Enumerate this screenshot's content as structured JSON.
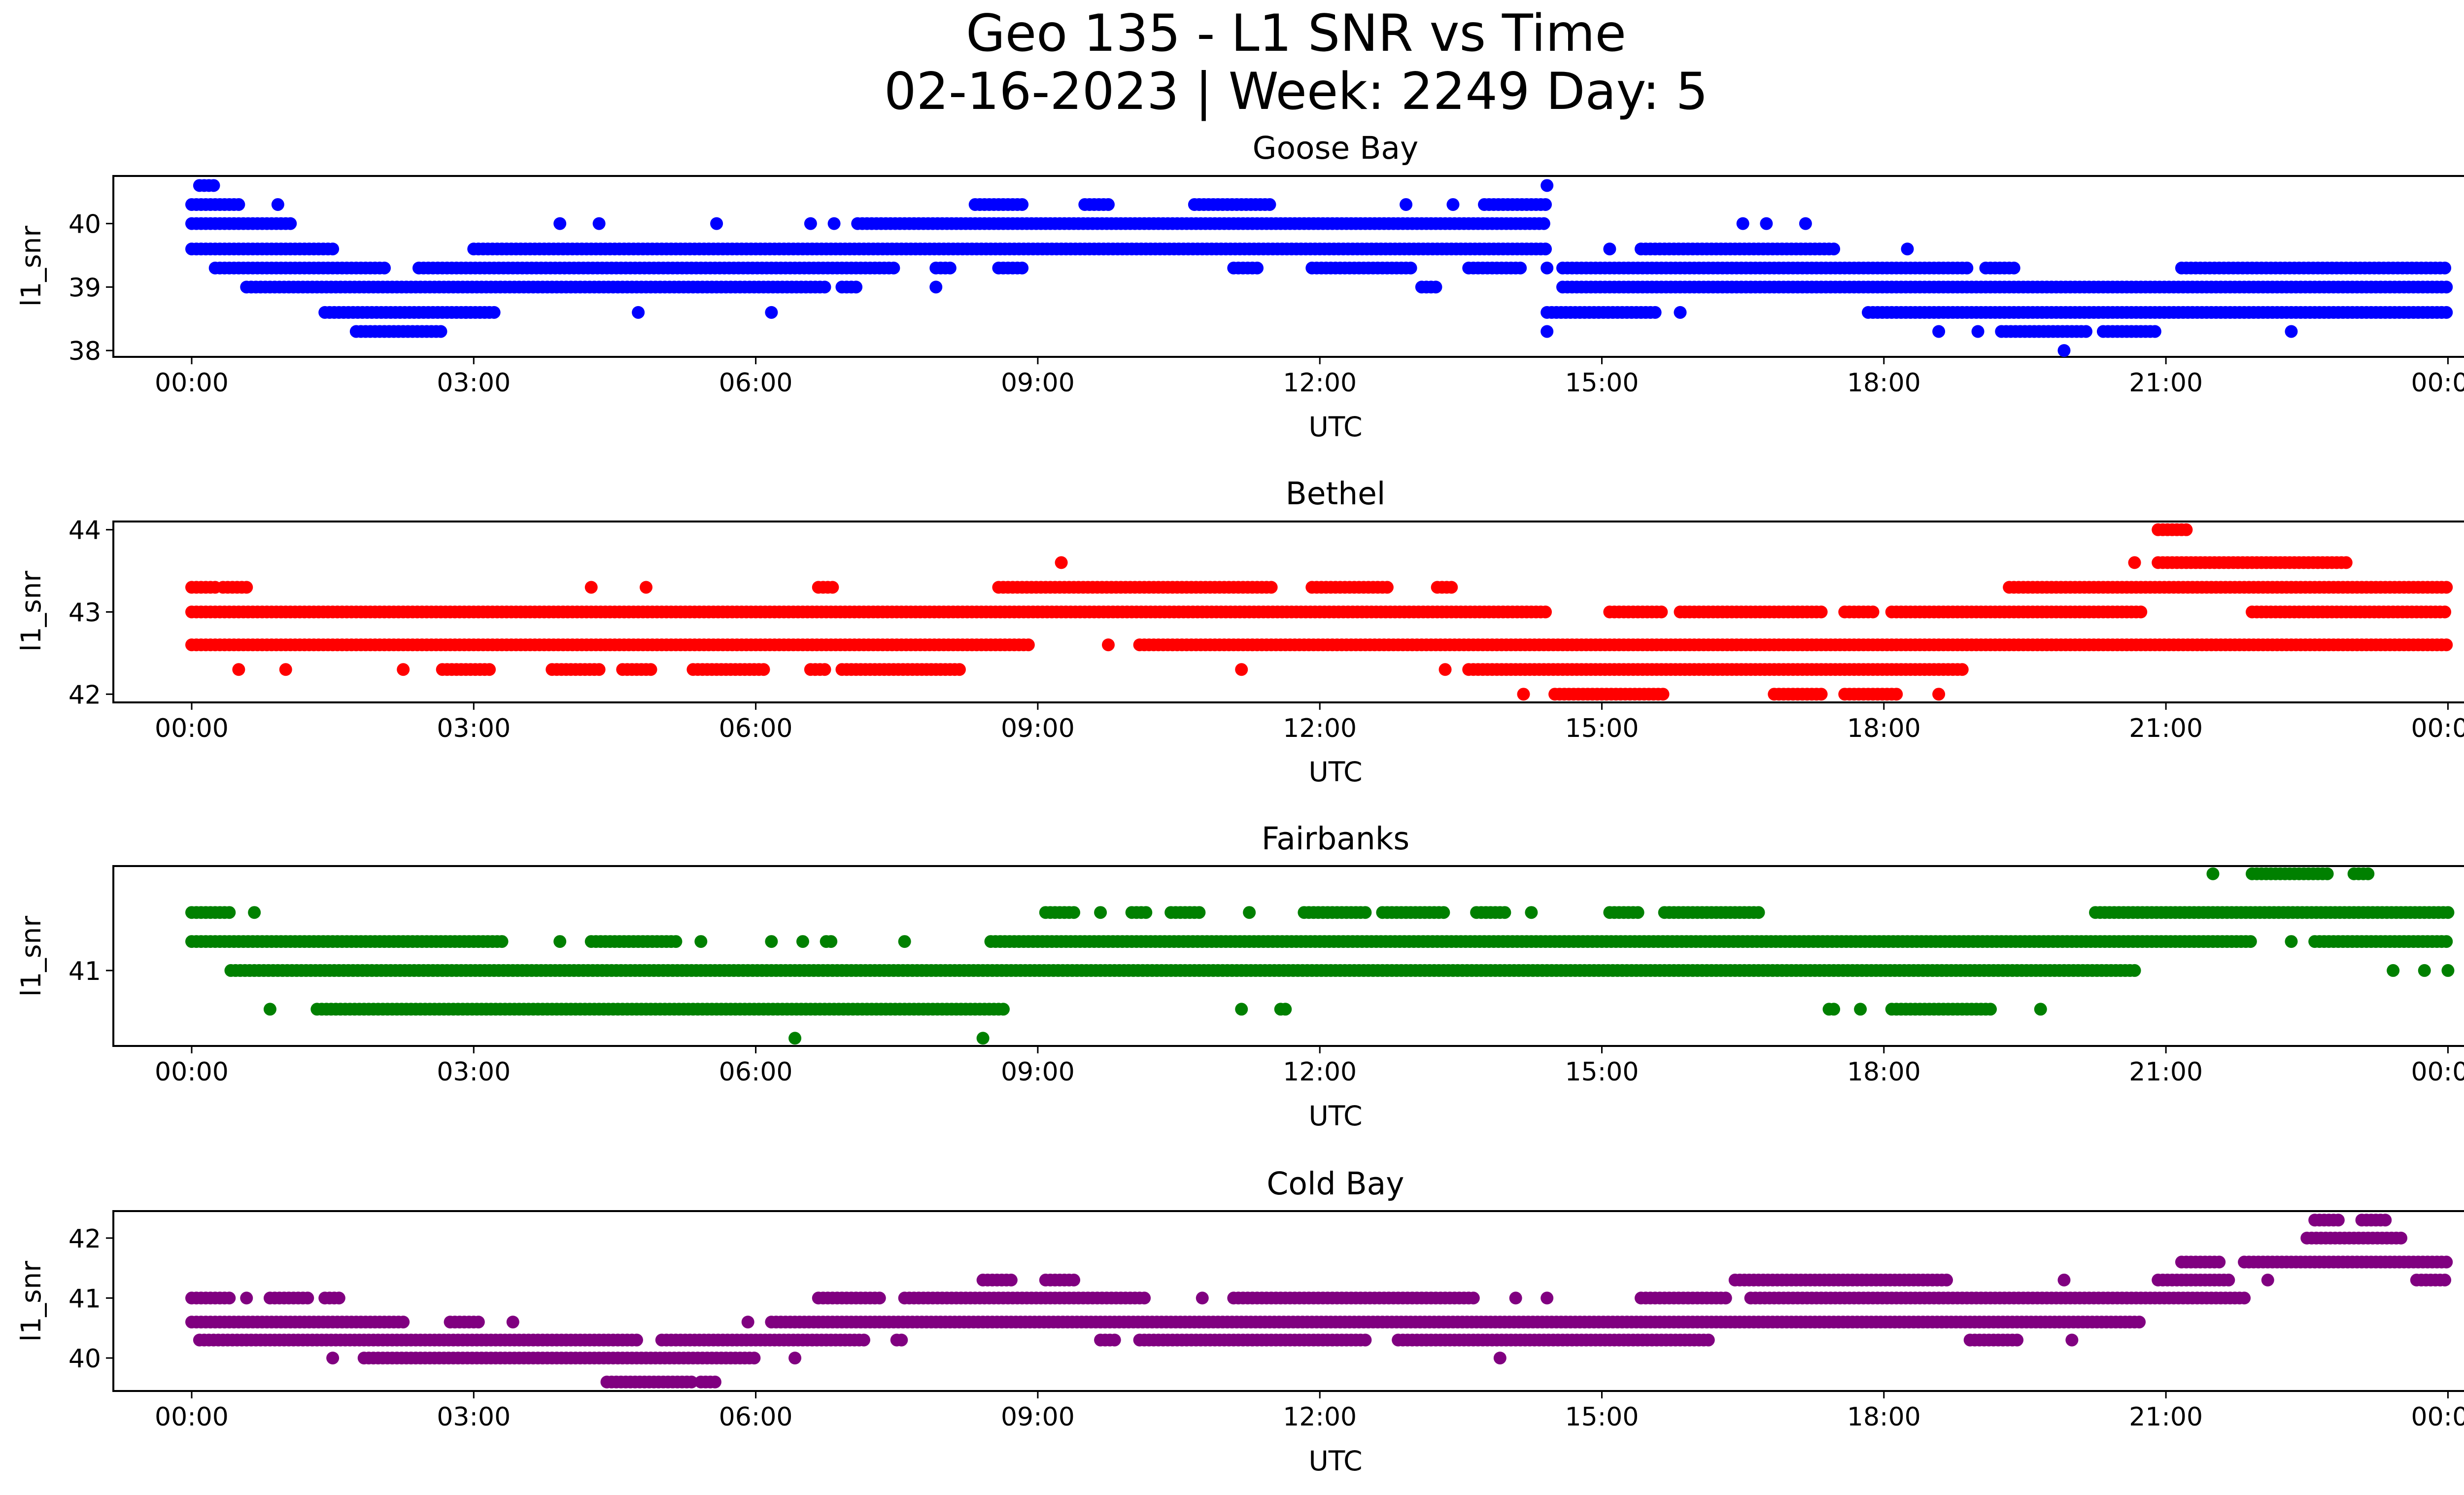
{
  "title_line1": "Geo 135 - L1 SNR vs Time",
  "title_line2": "02-16-2023 | Week: 2249 Day: 5",
  "xtick_labels": [
    "00:00",
    "03:00",
    "06:00",
    "09:00",
    "12:00",
    "15:00",
    "18:00",
    "21:00",
    "00:00"
  ],
  "chart_data": [
    {
      "type": "scatter",
      "title": "Goose Bay",
      "xlabel": "UTC",
      "ylabel": "l1_snr",
      "color": "#0000ff",
      "xlim": [
        "-01:10",
        "25:10"
      ],
      "ylim": [
        37.9,
        40.75
      ],
      "yticks": [
        38,
        39,
        40
      ],
      "grid": false,
      "levels": [
        {
          "y": 40.6,
          "x": [
            "00:05-00:15",
            "14:25"
          ]
        },
        {
          "y": 40.3,
          "x": [
            "00:00-00:30",
            "00:55",
            "08:20-08:50",
            "09:30-09:45",
            "10:40-11:30",
            "12:55",
            "13:25",
            "13:45-14:25"
          ]
        },
        {
          "y": 40.0,
          "x": [
            "00:00-01:05",
            "03:55",
            "04:20",
            "05:35",
            "06:35",
            "06:50",
            "07:05-14:25",
            "16:30",
            "16:45",
            "17:10"
          ]
        },
        {
          "y": 39.6,
          "x": [
            "00:00-01:30",
            "03:00-14:25",
            "15:05",
            "15:25-17:30",
            "18:15"
          ]
        },
        {
          "y": 39.3,
          "x": [
            "00:15-02:05",
            "02:25-07:30",
            "07:55-08:05",
            "08:35-08:50",
            "11:05-11:20",
            "11:55-13:00",
            "13:35-14:10",
            "14:25",
            "14:35-18:55",
            "19:05-19:25",
            "21:10-24:00"
          ]
        },
        {
          "y": 39.0,
          "x": [
            "00:35-06:45",
            "06:55-07:05",
            "07:55",
            "13:05-13:15",
            "14:35-24:00"
          ]
        },
        {
          "y": 38.6,
          "x": [
            "01:25-02:55",
            "02:55-03:15",
            "04:45",
            "06:10",
            "14:25-15:35",
            "15:50",
            "17:50-24:00"
          ]
        },
        {
          "y": 38.3,
          "x": [
            "01:45-02:40",
            "14:25",
            "18:35",
            "19:00",
            "19:15-20:10",
            "20:20-20:55",
            "22:20"
          ]
        },
        {
          "y": 38.0,
          "x": [
            "19:55"
          ]
        }
      ]
    },
    {
      "type": "scatter",
      "title": "Bethel",
      "xlabel": "UTC",
      "ylabel": "l1_snr",
      "color": "#ff0000",
      "xlim": [
        "-01:10",
        "25:10"
      ],
      "ylim": [
        41.9,
        44.1
      ],
      "yticks": [
        42,
        43,
        44
      ],
      "grid": false,
      "levels": [
        {
          "y": 44.0,
          "x": [
            "20:55-21:15"
          ]
        },
        {
          "y": 43.6,
          "x": [
            "09:15",
            "20:40",
            "20:55-22:55"
          ]
        },
        {
          "y": 43.3,
          "x": [
            "00:00-00:15",
            "00:20-00:35",
            "04:15",
            "04:50",
            "06:40-06:50",
            "08:35-11:30",
            "11:55-12:45",
            "13:15-13:25",
            "19:20-24:00"
          ]
        },
        {
          "y": 43.0,
          "x": [
            "00:00-14:25",
            "15:05-15:40",
            "15:50-17:20",
            "17:35-17:55",
            "18:05-20:45",
            "21:55-24:00"
          ]
        },
        {
          "y": 42.6,
          "x": [
            "00:00-08:55",
            "09:45",
            "10:05-24:00"
          ]
        },
        {
          "y": 42.3,
          "x": [
            "00:30",
            "01:00",
            "02:15",
            "02:40-03:10",
            "03:50-04:20",
            "04:35-04:55",
            "05:20-06:05",
            "06:35-06:45",
            "06:55-08:10",
            "11:10",
            "13:20",
            "13:35-18:50"
          ]
        },
        {
          "y": 42.0,
          "x": [
            "14:10",
            "14:30-15:40",
            "16:50-17:20",
            "17:35-18:10",
            "18:35"
          ]
        }
      ]
    },
    {
      "type": "scatter",
      "title": "Fairbanks",
      "xlabel": "UTC",
      "ylabel": "l1_snr",
      "color": "#008000",
      "xlim": [
        "-01:10",
        "25:10"
      ],
      "ylim": [
        40.22,
        42.08
      ],
      "yticks": [
        41
      ],
      "grid": false,
      "levels": [
        {
          "y": 42.0,
          "x": [
            "21:30",
            "21:55-22:45",
            "23:00-23:10"
          ]
        },
        {
          "y": 41.6,
          "x": [
            "00:00-00:25",
            "00:40",
            "09:05-09:25",
            "09:40",
            "10:00-10:10",
            "10:25-10:45",
            "11:15",
            "11:50-12:30",
            "12:40-13:20",
            "13:40-14:00",
            "14:15",
            "15:05-15:25",
            "15:40-16:40",
            "20:15-24:00"
          ]
        },
        {
          "y": 41.3,
          "x": [
            "00:00-03:20",
            "03:55",
            "04:15-05:10",
            "05:25",
            "06:10",
            "06:30",
            "06:45-06:50",
            "07:35",
            "08:30-21:55",
            "22:20",
            "22:35-24:00"
          ]
        },
        {
          "y": 41.0,
          "x": [
            "00:25-20:40",
            "23:25",
            "23:45",
            "24:00"
          ]
        },
        {
          "y": 40.6,
          "x": [
            "00:50",
            "01:20-08:40",
            "11:10",
            "11:35-11:40",
            "17:25-17:30",
            "17:45",
            "18:05-19:10",
            "19:40"
          ]
        },
        {
          "y": 40.3,
          "x": [
            "06:25",
            "08:25"
          ]
        }
      ]
    },
    {
      "type": "scatter",
      "title": "Cold Bay",
      "xlabel": "UTC",
      "ylabel": "l1_snr",
      "color": "#800080",
      "xlim": [
        "-01:10",
        "25:10"
      ],
      "ylim": [
        39.45,
        42.45
      ],
      "yticks": [
        40,
        41,
        42
      ],
      "grid": false,
      "levels": [
        {
          "y": 42.3,
          "x": [
            "22:35-22:50",
            "23:05-23:20"
          ]
        },
        {
          "y": 42.0,
          "x": [
            "22:30-23:30"
          ]
        },
        {
          "y": 41.6,
          "x": [
            "21:10-21:35",
            "21:50-24:00"
          ]
        },
        {
          "y": 41.3,
          "x": [
            "08:25-08:45",
            "09:05-09:25",
            "16:25-18:40",
            "19:55",
            "20:55-21:40",
            "22:05",
            "23:40-24:00"
          ]
        },
        {
          "y": 41.0,
          "x": [
            "00:00-00:25",
            "00:35",
            "00:50-01:15",
            "01:25-01:35",
            "06:40-07:20",
            "07:35-10:10",
            "10:45",
            "11:05-13:40",
            "14:05",
            "14:25",
            "15:25-16:20",
            "16:35-21:50"
          ]
        },
        {
          "y": 40.6,
          "x": [
            "00:00-02:15",
            "02:45-03:05",
            "03:25",
            "05:55",
            "06:10-20:45"
          ]
        },
        {
          "y": 40.3,
          "x": [
            "00:05-04:45",
            "05:00-07:10",
            "07:30-07:35",
            "09:40-09:50",
            "10:05-12:30",
            "12:50-16:10",
            "18:55-19:25",
            "20:00"
          ]
        },
        {
          "y": 40.0,
          "x": [
            "01:30",
            "01:50-06:00",
            "06:25",
            "13:55"
          ]
        },
        {
          "y": 39.6,
          "x": [
            "04:25-05:20",
            "05:25-05:35"
          ]
        }
      ]
    }
  ]
}
